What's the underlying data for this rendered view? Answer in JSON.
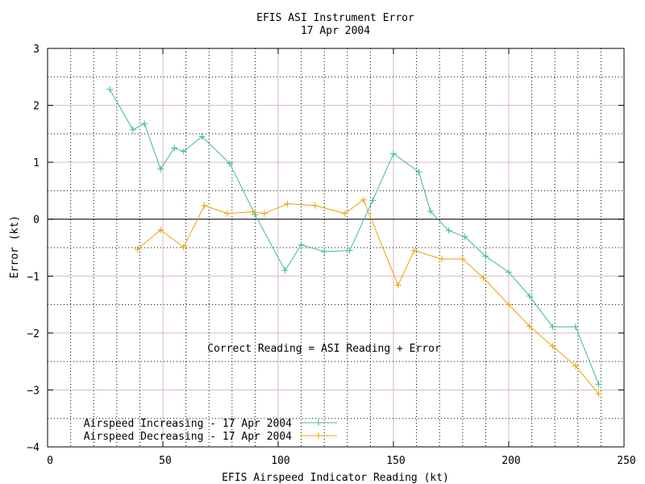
{
  "chart_data": {
    "type": "line",
    "title": "EFIS ASI Instrument Error",
    "subtitle": "17 Apr 2004",
    "xlabel": "EFIS Airspeed Indicator Reading (kt)",
    "ylabel": "Error (kt)",
    "xlim": [
      0,
      250
    ],
    "ylim": [
      -4,
      3
    ],
    "x_ticks": [
      0,
      50,
      100,
      150,
      200,
      250
    ],
    "y_ticks": [
      3,
      2,
      1,
      0,
      -1,
      -2,
      -3,
      -4
    ],
    "x_tick_labels": [
      "0",
      "50",
      "100",
      "150",
      "200",
      "250"
    ],
    "y_tick_labels": [
      "3",
      "2",
      "1",
      "0",
      "−1",
      "−2",
      "−3",
      "−4"
    ],
    "grid": true,
    "legend_position": "bottom-left",
    "annotation": "Correct Reading = ASI Reading + Error",
    "series": [
      {
        "name": "Airspeed Increasing - 17 Apr 2004",
        "color": "#3cb8a0",
        "marker": "+",
        "points": [
          [
            27,
            2.28
          ],
          [
            37,
            1.57
          ],
          [
            42,
            1.68
          ],
          [
            49,
            0.88
          ],
          [
            55,
            1.25
          ],
          [
            59,
            1.19
          ],
          [
            67,
            1.45
          ],
          [
            79,
            0.98
          ],
          [
            90,
            0.08
          ],
          [
            103,
            -0.9
          ],
          [
            110,
            -0.45
          ],
          [
            120,
            -0.57
          ],
          [
            131,
            -0.55
          ],
          [
            141,
            0.33
          ],
          [
            150,
            1.15
          ],
          [
            161,
            0.83
          ],
          [
            166,
            0.14
          ],
          [
            174,
            -0.2
          ],
          [
            181,
            -0.31
          ],
          [
            190,
            -0.65
          ],
          [
            200,
            -0.93
          ],
          [
            209,
            -1.35
          ],
          [
            219,
            -1.89
          ],
          [
            229,
            -1.89
          ],
          [
            239,
            -2.9
          ]
        ]
      },
      {
        "name": "Airspeed Decreasing - 17 Apr 2004",
        "color": "#f0a000",
        "marker": "+",
        "points": [
          [
            39,
            -0.53
          ],
          [
            49,
            -0.19
          ],
          [
            59,
            -0.49
          ],
          [
            68,
            0.24
          ],
          [
            78,
            0.1
          ],
          [
            89,
            0.13
          ],
          [
            94,
            0.1
          ],
          [
            104,
            0.27
          ],
          [
            116,
            0.24
          ],
          [
            129,
            0.1
          ],
          [
            137,
            0.34
          ],
          [
            152,
            -1.16
          ],
          [
            159,
            -0.55
          ],
          [
            171,
            -0.7
          ],
          [
            180,
            -0.7
          ],
          [
            189,
            -1.03
          ],
          [
            200,
            -1.5
          ],
          [
            209,
            -1.88
          ],
          [
            219,
            -2.23
          ],
          [
            229,
            -2.58
          ],
          [
            239,
            -3.07
          ]
        ]
      }
    ]
  }
}
